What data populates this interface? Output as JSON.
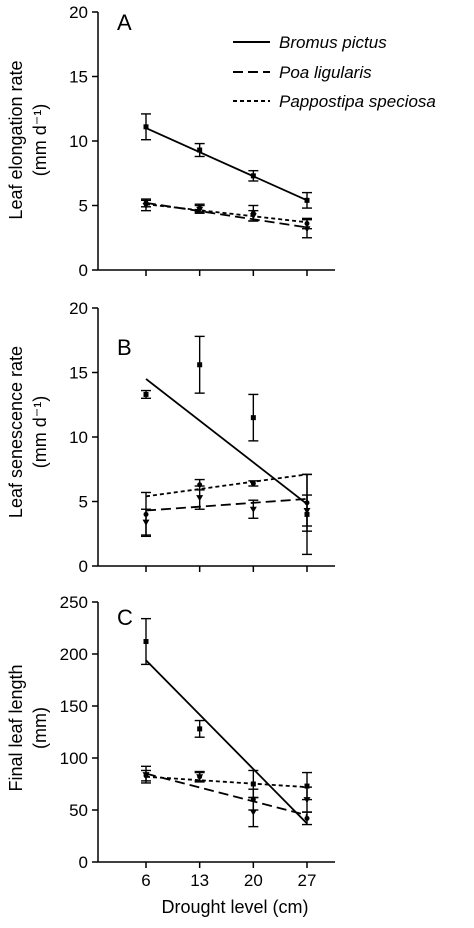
{
  "legend": [
    {
      "name": "Bromus pictus",
      "dash": "solid"
    },
    {
      "name": "Poa ligularis",
      "dash": "long-dash"
    },
    {
      "name": "Pappostipa speciosa",
      "dash": "short-dash"
    }
  ],
  "x_axis": {
    "label": "Drought level (cm)",
    "ticks": [
      "6",
      "13",
      "20",
      "27"
    ]
  },
  "chart_data": [
    {
      "type": "line",
      "panel": "A",
      "ylabel_line1": "Leaf elongation rate",
      "ylabel_line2": "(mm d⁻¹)",
      "ylim": [
        0,
        20
      ],
      "yticks": [
        0,
        5,
        10,
        15,
        20
      ],
      "x": [
        6,
        13,
        20,
        27
      ],
      "series": [
        {
          "name": "Bromus pictus",
          "dash": "solid",
          "marker": "square",
          "points": [
            {
              "x": 6,
              "y": 11.1,
              "err": 1.0
            },
            {
              "x": 13,
              "y": 9.3,
              "err": 0.5
            },
            {
              "x": 20,
              "y": 7.3,
              "err": 0.4
            },
            {
              "x": 27,
              "y": 5.4,
              "err": 0.6
            }
          ],
          "fit": [
            [
              6,
              11.0
            ],
            [
              27,
              5.4
            ]
          ]
        },
        {
          "name": "Poa ligularis",
          "dash": "long-dash",
          "marker": "triangle",
          "points": [
            {
              "x": 6,
              "y": 5.0,
              "err": 0.4
            },
            {
              "x": 13,
              "y": 4.7,
              "err": 0.3
            },
            {
              "x": 20,
              "y": 4.2,
              "err": 0.4
            },
            {
              "x": 27,
              "y": 3.2,
              "err": 0.7
            }
          ],
          "fit": [
            [
              6,
              5.2
            ],
            [
              27,
              3.3
            ]
          ]
        },
        {
          "name": "Pappostipa speciosa",
          "dash": "short-dash",
          "marker": "circle",
          "points": [
            {
              "x": 6,
              "y": 5.2,
              "err": 0.3
            },
            {
              "x": 13,
              "y": 4.8,
              "err": 0.3
            },
            {
              "x": 20,
              "y": 4.4,
              "err": 0.6
            },
            {
              "x": 27,
              "y": 3.6,
              "err": 0.4
            }
          ],
          "fit": [
            [
              6,
              5.1
            ],
            [
              27,
              3.7
            ]
          ]
        }
      ]
    },
    {
      "type": "line",
      "panel": "B",
      "ylabel_line1": "Leaf senescence rate",
      "ylabel_line2": "(mm d⁻¹)",
      "ylim": [
        0,
        20
      ],
      "yticks": [
        0,
        5,
        10,
        15,
        20
      ],
      "x": [
        6,
        13,
        20,
        27
      ],
      "series": [
        {
          "name": "Bromus pictus",
          "dash": "solid",
          "marker": "square",
          "points": [
            {
              "x": 6,
              "y": 13.3,
              "err": 0.3
            },
            {
              "x": 13,
              "y": 15.6,
              "err": 2.2
            },
            {
              "x": 20,
              "y": 11.5,
              "err": 1.8
            },
            {
              "x": 27,
              "y": 4.0,
              "err": 3.1
            }
          ],
          "fit": [
            [
              6,
              14.5
            ],
            [
              27,
              4.8
            ]
          ]
        },
        {
          "name": "Poa ligularis",
          "dash": "long-dash",
          "marker": "triangle",
          "points": [
            {
              "x": 6,
              "y": 3.4,
              "err": 1.0
            },
            {
              "x": 13,
              "y": 5.3,
              "err": 0.9
            },
            {
              "x": 20,
              "y": 4.4,
              "err": 0.7
            },
            {
              "x": 27,
              "y": 4.3,
              "err": 1.2
            }
          ],
          "fit": [
            [
              6,
              4.3
            ],
            [
              27,
              5.2
            ]
          ]
        },
        {
          "name": "Pappostipa speciosa",
          "dash": "short-dash",
          "marker": "circle",
          "points": [
            {
              "x": 6,
              "y": 4.0,
              "err": 1.7
            },
            {
              "x": 13,
              "y": 6.3,
              "err": 0.4
            },
            {
              "x": 20,
              "y": 6.4,
              "err": 0.2
            },
            {
              "x": 27,
              "y": 4.9,
              "err": 2.2
            }
          ],
          "fit": [
            [
              6,
              5.4
            ],
            [
              27,
              7.1
            ]
          ]
        }
      ]
    },
    {
      "type": "line",
      "panel": "C",
      "ylabel_line1": "Final leaf length",
      "ylabel_line2": "(mm)",
      "ylim": [
        0,
        250
      ],
      "yticks": [
        0,
        50,
        100,
        150,
        200,
        250
      ],
      "x": [
        6,
        13,
        20,
        27
      ],
      "series": [
        {
          "name": "Bromus pictus",
          "dash": "solid",
          "marker": "square",
          "points": [
            {
              "x": 6,
              "y": 212,
              "err": 22
            },
            {
              "x": 13,
              "y": 128,
              "err": 8
            },
            {
              "x": 20,
              "y": 75,
              "err": 13
            },
            {
              "x": 27,
              "y": 73,
              "err": 13
            }
          ],
          "fit": [
            [
              6,
              194
            ],
            [
              27,
              37
            ]
          ]
        },
        {
          "name": "Poa ligularis",
          "dash": "long-dash",
          "marker": "triangle",
          "points": [
            {
              "x": 6,
              "y": 84,
              "err": 8
            },
            {
              "x": 13,
              "y": 82,
              "err": 5
            },
            {
              "x": 20,
              "y": 48,
              "err": 14
            },
            {
              "x": 27,
              "y": 60,
              "err": 12
            }
          ],
          "fit": [
            [
              6,
              85
            ],
            [
              27,
              45
            ]
          ]
        },
        {
          "name": "Pappostipa speciosa",
          "dash": "short-dash",
          "marker": "circle",
          "points": [
            {
              "x": 6,
              "y": 83,
              "err": 5
            },
            {
              "x": 13,
              "y": 82,
              "err": 4
            },
            {
              "x": 20,
              "y": 60,
              "err": 10
            },
            {
              "x": 27,
              "y": 42,
              "err": 6
            }
          ],
          "fit": [
            [
              6,
              82
            ],
            [
              27,
              72
            ]
          ]
        }
      ]
    }
  ]
}
